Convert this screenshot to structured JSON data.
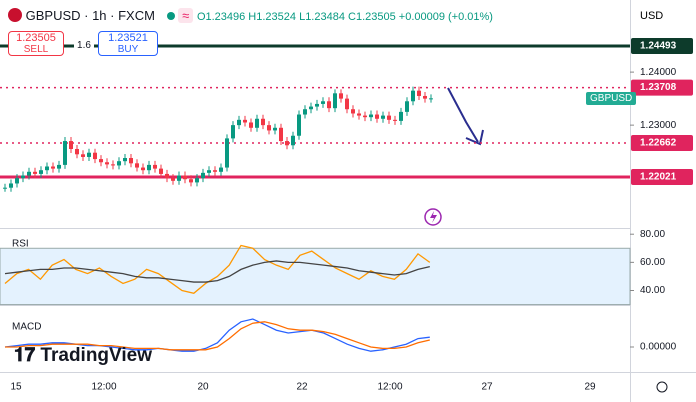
{
  "header": {
    "symbol": "GBPUSD · 1h · FXCM",
    "ohlc": "O1.23496 H1.23524 L1.23484 C1.23505 +0.00009 (+0.01%)",
    "sell_price": "1.23505",
    "sell_label": "SELL",
    "spread": "1.6",
    "buy_price": "1.23521",
    "buy_label": "BUY",
    "currency": "USD",
    "symbol_tag": "GBPUSD",
    "logo": "TradingView"
  },
  "chart_data": [
    {
      "type": "candlestick",
      "close": [
        1.2182,
        1.219,
        1.22,
        1.2205,
        1.2212,
        1.2208,
        1.2215,
        1.2222,
        1.2218,
        1.2225,
        1.227,
        1.2255,
        1.2245,
        1.224,
        1.2248,
        1.2236,
        1.223,
        1.2226,
        1.2224,
        1.2232,
        1.2238,
        1.2228,
        1.222,
        1.2215,
        1.2225,
        1.2218,
        1.2208,
        1.22,
        1.2195,
        1.2205,
        1.2198,
        1.2192,
        1.22,
        1.221,
        1.2215,
        1.2212,
        1.222,
        1.2275,
        1.23,
        1.231,
        1.2305,
        1.2295,
        1.2312,
        1.23,
        1.229,
        1.2295,
        1.227,
        1.2262,
        1.228,
        1.232,
        1.233,
        1.2335,
        1.234,
        1.2345,
        1.2332,
        1.236,
        1.235,
        1.233,
        1.2322,
        1.2318,
        1.2315,
        1.232,
        1.2312,
        1.2318,
        1.231,
        1.2308,
        1.2325,
        1.2345,
        1.2365,
        1.2355,
        1.235,
        1.23505
      ],
      "ylim": [
        1.2106,
        1.2536
      ],
      "yticks": [
        {
          "value": 1.24,
          "label": "1.24000"
        },
        {
          "value": 1.23,
          "label": "1.23000"
        }
      ],
      "levels": [
        {
          "value": 1.24493,
          "label": "1.24493",
          "color": "#0d3b2b",
          "style": "solid"
        },
        {
          "value": 1.23708,
          "label": "1.23708",
          "color": "#e0245e",
          "style": "dotted"
        },
        {
          "value": 1.22662,
          "label": "1.22662",
          "color": "#e0245e",
          "style": "dotted"
        },
        {
          "value": 1.22021,
          "label": "1.22021",
          "color": "#e0245e",
          "style": "solid"
        }
      ]
    },
    {
      "type": "line",
      "title": "RSI",
      "ylim": [
        30.4,
        83.7
      ],
      "yticks": [
        {
          "value": 80,
          "label": "80.00"
        },
        {
          "value": 60,
          "label": "60.00"
        },
        {
          "value": 40,
          "label": "40.00"
        }
      ],
      "band": [
        30,
        70
      ],
      "series": [
        {
          "color": "#ff9800",
          "values": [
            45,
            52,
            55,
            48,
            58,
            62,
            55,
            52,
            56,
            50,
            45,
            48,
            55,
            52,
            46,
            40,
            38,
            45,
            50,
            58,
            72,
            70,
            62,
            58,
            55,
            65,
            68,
            62,
            56,
            52,
            48,
            54,
            50,
            48,
            55,
            66,
            60
          ]
        },
        {
          "color": "#444444",
          "values": [
            52,
            53,
            54,
            55,
            55,
            56,
            56,
            55,
            54,
            53,
            52,
            50,
            49,
            49,
            48,
            47,
            46,
            46,
            47,
            50,
            55,
            58,
            60,
            61,
            60,
            60,
            59,
            58,
            57,
            56,
            54,
            53,
            52,
            51,
            52,
            55,
            57
          ]
        }
      ]
    },
    {
      "type": "line",
      "title": "MACD",
      "ylim": [
        -0.0015,
        0.0025
      ],
      "yticks": [
        {
          "value": 0,
          "label": "0.00000"
        }
      ],
      "series": [
        {
          "color": "#2962ff",
          "values": [
            0,
            0.0001,
            0.0002,
            0.0002,
            0.0003,
            0.0003,
            0.0002,
            0.0001,
            0.0001,
            0,
            -0.0001,
            -0.0002,
            -0.0002,
            -0.0001,
            -0.0002,
            -0.0003,
            -0.0003,
            -0.0001,
            0.0003,
            0.0012,
            0.0018,
            0.002,
            0.0016,
            0.0012,
            0.001,
            0.0011,
            0.0012,
            0.001,
            0.0006,
            0.0002,
            -0.0001,
            -0.0003,
            -0.0002,
            0,
            0.0002,
            0.0006,
            0.0007
          ]
        },
        {
          "color": "#ff6d00",
          "values": [
            0,
            0,
            0.0001,
            0.0001,
            0.0002,
            0.0002,
            0.0002,
            0.0002,
            0.0001,
            0.0001,
            0,
            -0.0001,
            -0.0001,
            -0.0001,
            -0.0002,
            -0.0002,
            -0.0002,
            -0.0002,
            0,
            0.0006,
            0.0013,
            0.0017,
            0.0018,
            0.0016,
            0.0013,
            0.0012,
            0.0012,
            0.0011,
            0.0009,
            0.0006,
            0.0003,
            0,
            -0.0001,
            -0.0001,
            0,
            0.0003,
            0.0005
          ]
        }
      ]
    }
  ],
  "time_axis": {
    "labels": [
      "15",
      "12:00",
      "20",
      "22",
      "12:00",
      "27",
      "29"
    ]
  }
}
